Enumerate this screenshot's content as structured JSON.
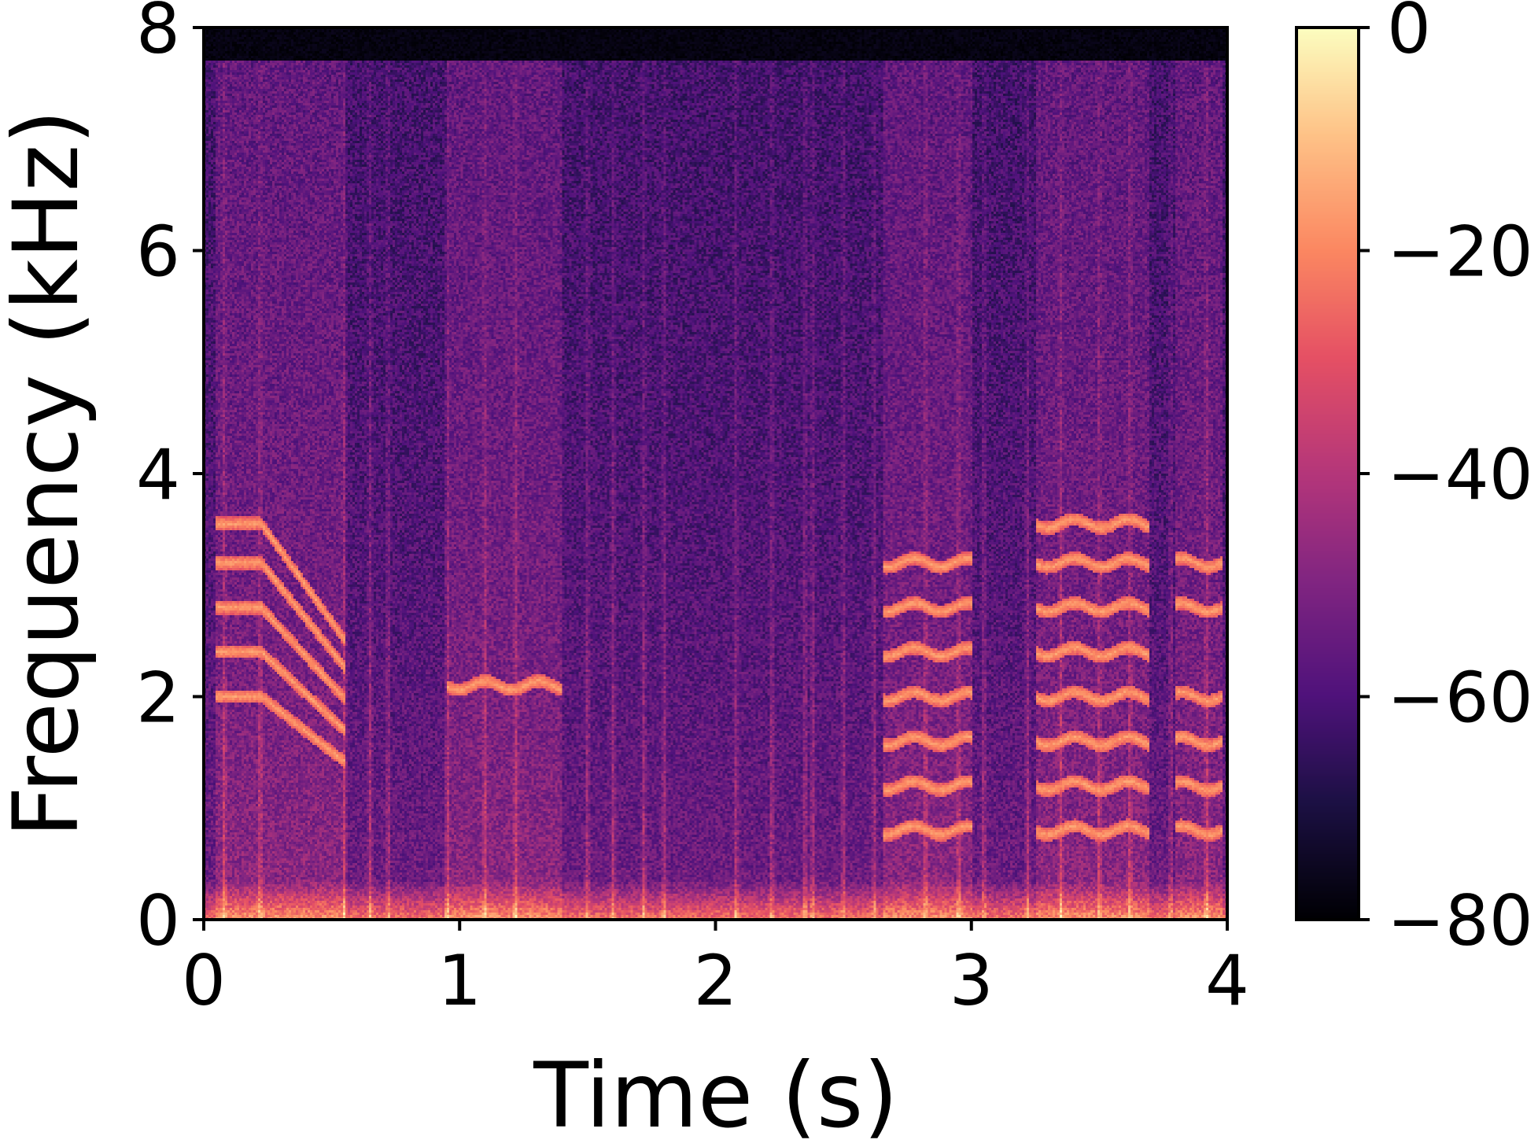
{
  "chart_data": {
    "type": "heatmap",
    "title": "",
    "xlabel": "Time (s)",
    "ylabel": "Frequency (kHz)",
    "xlim": [
      0,
      4.0
    ],
    "ylim": [
      0,
      8
    ],
    "x_ticks": [
      0,
      1,
      2,
      3,
      4
    ],
    "x_tick_labels": [
      "0",
      "1",
      "2",
      "3",
      "4"
    ],
    "y_ticks": [
      0,
      2,
      4,
      6,
      8
    ],
    "y_tick_labels": [
      "0",
      "2",
      "4",
      "6",
      "8"
    ],
    "colormap": "magma",
    "colorbar": {
      "range": [
        -80,
        0
      ],
      "ticks": [
        0,
        -20,
        -40,
        -60,
        -80
      ],
      "tick_labels": [
        "0",
        "−20",
        "−40",
        "−60",
        "−80"
      ]
    },
    "description_segments": [
      {
        "t_start": 0.05,
        "t_end": 0.55,
        "f0_khz": 0.4,
        "harmonics": [
          2.0,
          2.4,
          2.8,
          3.2,
          3.55
        ],
        "falling": true
      },
      {
        "t_start": 0.95,
        "t_end": 1.4,
        "f0_khz": 2.1,
        "harmonics": [
          2.1
        ]
      },
      {
        "t_start": 2.65,
        "t_end": 3.0,
        "f0_khz": 0.4,
        "harmonics": [
          0.8,
          1.2,
          1.6,
          2.0,
          2.4,
          2.8,
          3.2
        ]
      },
      {
        "t_start": 3.25,
        "t_end": 3.7,
        "f0_khz": 0.4,
        "harmonics": [
          0.8,
          1.2,
          1.6,
          2.0,
          2.4,
          2.8,
          3.2,
          3.55
        ]
      },
      {
        "t_start": 3.8,
        "t_end": 3.98,
        "f0_khz": 0.4,
        "harmonics": [
          0.8,
          1.2,
          1.6,
          2.0,
          2.8,
          3.2
        ]
      }
    ]
  },
  "colors": {
    "axis": "#000000",
    "background": "#ffffff"
  }
}
